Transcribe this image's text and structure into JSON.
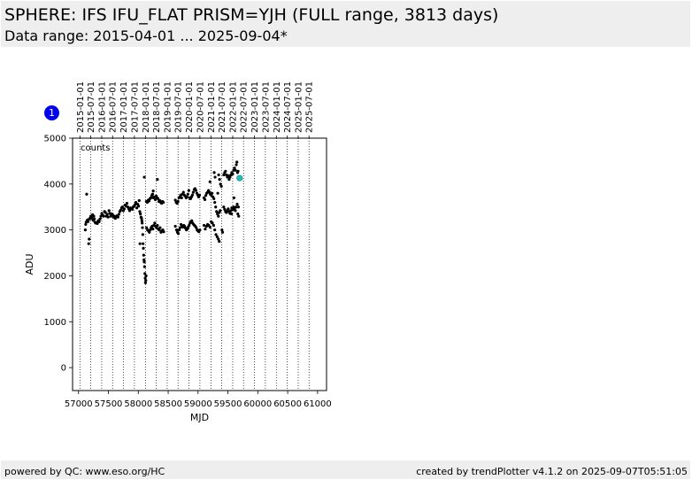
{
  "header": {
    "title": "SPHERE: IFS IFU_FLAT PRISM=YJH (FULL range, 3813 days)",
    "subtitle": "Data range: 2015-04-01 ... 2025-09-04*"
  },
  "badge": {
    "label": "1",
    "color": "#0000ee"
  },
  "footer": {
    "left": "powered by QC: www.eso.org/HC",
    "right": "created by trendPlotter v4.1.2 on 2025-09-07T05:51:05"
  },
  "colors": {
    "points": "#000000",
    "latest_point": "#22bbbb",
    "header_bg": "#eeeeee"
  },
  "chart_data": {
    "type": "scatter",
    "xlabel": "MJD",
    "ylabel": "ADU",
    "annotation": "counts",
    "xlim": [
      56900,
      61150
    ],
    "ylim": [
      -500,
      5000
    ],
    "x_ticks": [
      57000,
      57500,
      58000,
      58500,
      59000,
      59500,
      60000,
      60500,
      61000
    ],
    "x_tick_labels": [
      "57000",
      "57500",
      "58000",
      "58500",
      "59000",
      "59500",
      "60000",
      "60500",
      "61000"
    ],
    "y_ticks": [
      0,
      1000,
      2000,
      3000,
      4000,
      5000
    ],
    "y_tick_labels": [
      "0",
      "1000",
      "2000",
      "3000",
      "4000",
      "5000"
    ],
    "date_ticks": [
      {
        "label": "2015-01-01",
        "mjd": 57023
      },
      {
        "label": "2015-07-01",
        "mjd": 57204
      },
      {
        "label": "2016-01-01",
        "mjd": 57388
      },
      {
        "label": "2016-07-01",
        "mjd": 57570
      },
      {
        "label": "2017-01-01",
        "mjd": 57754
      },
      {
        "label": "2017-07-01",
        "mjd": 57935
      },
      {
        "label": "2018-01-01",
        "mjd": 58119
      },
      {
        "label": "2018-07-01",
        "mjd": 58300
      },
      {
        "label": "2019-01-01",
        "mjd": 58484
      },
      {
        "label": "2019-07-01",
        "mjd": 58665
      },
      {
        "label": "2020-01-01",
        "mjd": 58849
      },
      {
        "label": "2020-07-01",
        "mjd": 59031
      },
      {
        "label": "2021-01-01",
        "mjd": 59215
      },
      {
        "label": "2021-07-01",
        "mjd": 59396
      },
      {
        "label": "2022-01-01",
        "mjd": 59580
      },
      {
        "label": "2022-07-01",
        "mjd": 59761
      },
      {
        "label": "2023-01-01",
        "mjd": 59945
      },
      {
        "label": "2023-07-01",
        "mjd": 60126
      },
      {
        "label": "2024-01-01",
        "mjd": 60310
      },
      {
        "label": "2024-07-01",
        "mjd": 60492
      },
      {
        "label": "2025-01-01",
        "mjd": 60676
      },
      {
        "label": "2025-07-01",
        "mjd": 60857
      }
    ],
    "grid": "vertical dotted lines at date ticks",
    "series": [
      {
        "values": [
          [
            57113,
            3000
          ],
          [
            57120,
            3120
          ],
          [
            57128,
            3170
          ],
          [
            57136,
            3780
          ],
          [
            57145,
            3200
          ],
          [
            57152,
            3220
          ],
          [
            57160,
            3180
          ],
          [
            57170,
            2700
          ],
          [
            57178,
            2800
          ],
          [
            57185,
            3240
          ],
          [
            57195,
            3260
          ],
          [
            57205,
            3300
          ],
          [
            57215,
            3250
          ],
          [
            57225,
            3280
          ],
          [
            57235,
            3330
          ],
          [
            57245,
            3210
          ],
          [
            57255,
            3300
          ],
          [
            57265,
            3240
          ],
          [
            57275,
            3170
          ],
          [
            57285,
            3150
          ],
          [
            57300,
            3160
          ],
          [
            57315,
            3140
          ],
          [
            57330,
            3200
          ],
          [
            57345,
            3180
          ],
          [
            57360,
            3240
          ],
          [
            57375,
            3300
          ],
          [
            57390,
            3360
          ],
          [
            57405,
            3320
          ],
          [
            57420,
            3300
          ],
          [
            57435,
            3400
          ],
          [
            57450,
            3380
          ],
          [
            57465,
            3300
          ],
          [
            57480,
            3340
          ],
          [
            57495,
            3280
          ],
          [
            57510,
            3420
          ],
          [
            57525,
            3360
          ],
          [
            57540,
            3300
          ],
          [
            57555,
            3350
          ],
          [
            57570,
            3330
          ],
          [
            57585,
            3280
          ],
          [
            57600,
            3300
          ],
          [
            57615,
            3250
          ],
          [
            57630,
            3290
          ],
          [
            57645,
            3310
          ],
          [
            57660,
            3280
          ],
          [
            57675,
            3340
          ],
          [
            57690,
            3400
          ],
          [
            57705,
            3430
          ],
          [
            57720,
            3480
          ],
          [
            57735,
            3500
          ],
          [
            57750,
            3420
          ],
          [
            57765,
            3460
          ],
          [
            57780,
            3540
          ],
          [
            57795,
            3520
          ],
          [
            57810,
            3580
          ],
          [
            57825,
            3500
          ],
          [
            57840,
            3460
          ],
          [
            57855,
            3420
          ],
          [
            57870,
            3480
          ],
          [
            57885,
            3460
          ],
          [
            57900,
            3450
          ],
          [
            57915,
            3500
          ],
          [
            57930,
            3520
          ],
          [
            57945,
            3550
          ],
          [
            57960,
            3600
          ],
          [
            57975,
            3480
          ],
          [
            57990,
            3560
          ],
          [
            58005,
            3520
          ],
          [
            58015,
            3640
          ],
          [
            58025,
            3400
          ],
          [
            58035,
            3350
          ],
          [
            58045,
            3280
          ],
          [
            58055,
            3250
          ],
          [
            58060,
            3200
          ],
          [
            58065,
            3150
          ],
          [
            58070,
            3050
          ],
          [
            58075,
            2900
          ],
          [
            58080,
            2700
          ],
          [
            58085,
            2600
          ],
          [
            58090,
            2450
          ],
          [
            58095,
            2350
          ],
          [
            58100,
            2300
          ],
          [
            58105,
            2200
          ],
          [
            58110,
            2050
          ],
          [
            58115,
            1950
          ],
          [
            58120,
            1850
          ],
          [
            58125,
            1900
          ],
          [
            58130,
            2000
          ],
          [
            58100,
            4150
          ],
          [
            58028,
            2700
          ],
          [
            58140,
            3050
          ],
          [
            58155,
            3000
          ],
          [
            58170,
            2980
          ],
          [
            58185,
            2950
          ],
          [
            58200,
            3000
          ],
          [
            58215,
            3050
          ],
          [
            58230,
            3080
          ],
          [
            58245,
            3020
          ],
          [
            58260,
            3100
          ],
          [
            58275,
            3150
          ],
          [
            58290,
            3080
          ],
          [
            58305,
            3050
          ],
          [
            58320,
            3100
          ],
          [
            58335,
            3020
          ],
          [
            58350,
            3000
          ],
          [
            58365,
            3050
          ],
          [
            58380,
            2950
          ],
          [
            58395,
            2980
          ],
          [
            58410,
            3000
          ],
          [
            58425,
            2960
          ],
          [
            58135,
            3620
          ],
          [
            58150,
            3600
          ],
          [
            58165,
            3650
          ],
          [
            58180,
            3630
          ],
          [
            58195,
            3680
          ],
          [
            58210,
            3700
          ],
          [
            58225,
            3750
          ],
          [
            58240,
            3780
          ],
          [
            58255,
            3700
          ],
          [
            58270,
            3720
          ],
          [
            58285,
            3660
          ],
          [
            58300,
            3740
          ],
          [
            58315,
            3700
          ],
          [
            58330,
            3680
          ],
          [
            58345,
            3620
          ],
          [
            58360,
            3640
          ],
          [
            58375,
            3600
          ],
          [
            58390,
            3580
          ],
          [
            58405,
            3620
          ],
          [
            58420,
            3600
          ],
          [
            58250,
            3850
          ],
          [
            58320,
            4100
          ],
          [
            58620,
            3650
          ],
          [
            58635,
            3600
          ],
          [
            58650,
            3580
          ],
          [
            58665,
            3620
          ],
          [
            58680,
            3700
          ],
          [
            58695,
            3720
          ],
          [
            58710,
            3760
          ],
          [
            58725,
            3700
          ],
          [
            58740,
            3780
          ],
          [
            58755,
            3820
          ],
          [
            58770,
            3760
          ],
          [
            58785,
            3740
          ],
          [
            58800,
            3700
          ],
          [
            58815,
            3720
          ],
          [
            58830,
            3780
          ],
          [
            58845,
            3860
          ],
          [
            58860,
            3700
          ],
          [
            58875,
            3680
          ],
          [
            58890,
            3720
          ],
          [
            58905,
            3760
          ],
          [
            58920,
            3820
          ],
          [
            58935,
            3880
          ],
          [
            58950,
            3900
          ],
          [
            58965,
            3860
          ],
          [
            58980,
            3800
          ],
          [
            58995,
            3760
          ],
          [
            59010,
            3720
          ],
          [
            59025,
            3760
          ],
          [
            58620,
            3080
          ],
          [
            58640,
            3000
          ],
          [
            58655,
            2950
          ],
          [
            58670,
            2920
          ],
          [
            58685,
            3000
          ],
          [
            58700,
            3050
          ],
          [
            58715,
            3120
          ],
          [
            58730,
            3080
          ],
          [
            58745,
            3060
          ],
          [
            58760,
            3100
          ],
          [
            58775,
            3080
          ],
          [
            58790,
            3040
          ],
          [
            58805,
            3000
          ],
          [
            58820,
            3020
          ],
          [
            58835,
            3060
          ],
          [
            58850,
            3100
          ],
          [
            58865,
            3150
          ],
          [
            58880,
            3180
          ],
          [
            58895,
            3200
          ],
          [
            58910,
            3150
          ],
          [
            58925,
            3120
          ],
          [
            58940,
            3100
          ],
          [
            58955,
            3080
          ],
          [
            58970,
            3050
          ],
          [
            58985,
            3000
          ],
          [
            59000,
            2980
          ],
          [
            59015,
            2960
          ],
          [
            59030,
            3000
          ],
          [
            59100,
            3700
          ],
          [
            59115,
            3660
          ],
          [
            59130,
            3750
          ],
          [
            59145,
            3800
          ],
          [
            59160,
            3820
          ],
          [
            59175,
            3860
          ],
          [
            59190,
            3820
          ],
          [
            59205,
            3780
          ],
          [
            59220,
            3760
          ],
          [
            59235,
            3800
          ],
          [
            59250,
            3720
          ],
          [
            59265,
            3680
          ],
          [
            59280,
            3600
          ],
          [
            59295,
            3500
          ],
          [
            59310,
            3400
          ],
          [
            59325,
            3350
          ],
          [
            59340,
            3300
          ],
          [
            59355,
            3380
          ],
          [
            59370,
            3420
          ],
          [
            59100,
            3100
          ],
          [
            59120,
            3020
          ],
          [
            59140,
            3080
          ],
          [
            59160,
            3120
          ],
          [
            59180,
            3100
          ],
          [
            59200,
            3060
          ],
          [
            59220,
            3180
          ],
          [
            59240,
            3150
          ],
          [
            59260,
            3100
          ],
          [
            59280,
            3000
          ],
          [
            59300,
            2900
          ],
          [
            59320,
            2850
          ],
          [
            59340,
            2800
          ],
          [
            59355,
            2750
          ],
          [
            59200,
            4050
          ],
          [
            59270,
            4250
          ],
          [
            59285,
            4150
          ],
          [
            59330,
            3800
          ],
          [
            59345,
            4200
          ],
          [
            59360,
            4100
          ],
          [
            59375,
            4000
          ],
          [
            59390,
            3950
          ],
          [
            59400,
            3000
          ],
          [
            59410,
            2950
          ],
          [
            59430,
            3500
          ],
          [
            59445,
            3450
          ],
          [
            59460,
            3400
          ],
          [
            59475,
            3380
          ],
          [
            59490,
            3420
          ],
          [
            59505,
            3460
          ],
          [
            59520,
            3400
          ],
          [
            59535,
            3360
          ],
          [
            59550,
            3420
          ],
          [
            59565,
            3480
          ],
          [
            59580,
            3440
          ],
          [
            59595,
            3500
          ],
          [
            59610,
            3460
          ],
          [
            59625,
            3420
          ],
          [
            59640,
            3500
          ],
          [
            59655,
            3560
          ],
          [
            59430,
            4200
          ],
          [
            59445,
            4250
          ],
          [
            59460,
            4280
          ],
          [
            59475,
            4200
          ],
          [
            59490,
            4150
          ],
          [
            59505,
            4180
          ],
          [
            59520,
            4100
          ],
          [
            59535,
            4150
          ],
          [
            59550,
            4200
          ],
          [
            59565,
            4250
          ],
          [
            59580,
            4220
          ],
          [
            59595,
            4300
          ],
          [
            59610,
            4350
          ],
          [
            59625,
            4300
          ],
          [
            59640,
            4420
          ],
          [
            59650,
            4480
          ],
          [
            59660,
            4250
          ],
          [
            59670,
            4280
          ],
          [
            59560,
            3350
          ],
          [
            59600,
            3700
          ],
          [
            59665,
            3350
          ],
          [
            59675,
            3500
          ],
          [
            59680,
            3300
          ]
        ]
      }
    ],
    "latest_point": [
      59695,
      4130
    ]
  }
}
